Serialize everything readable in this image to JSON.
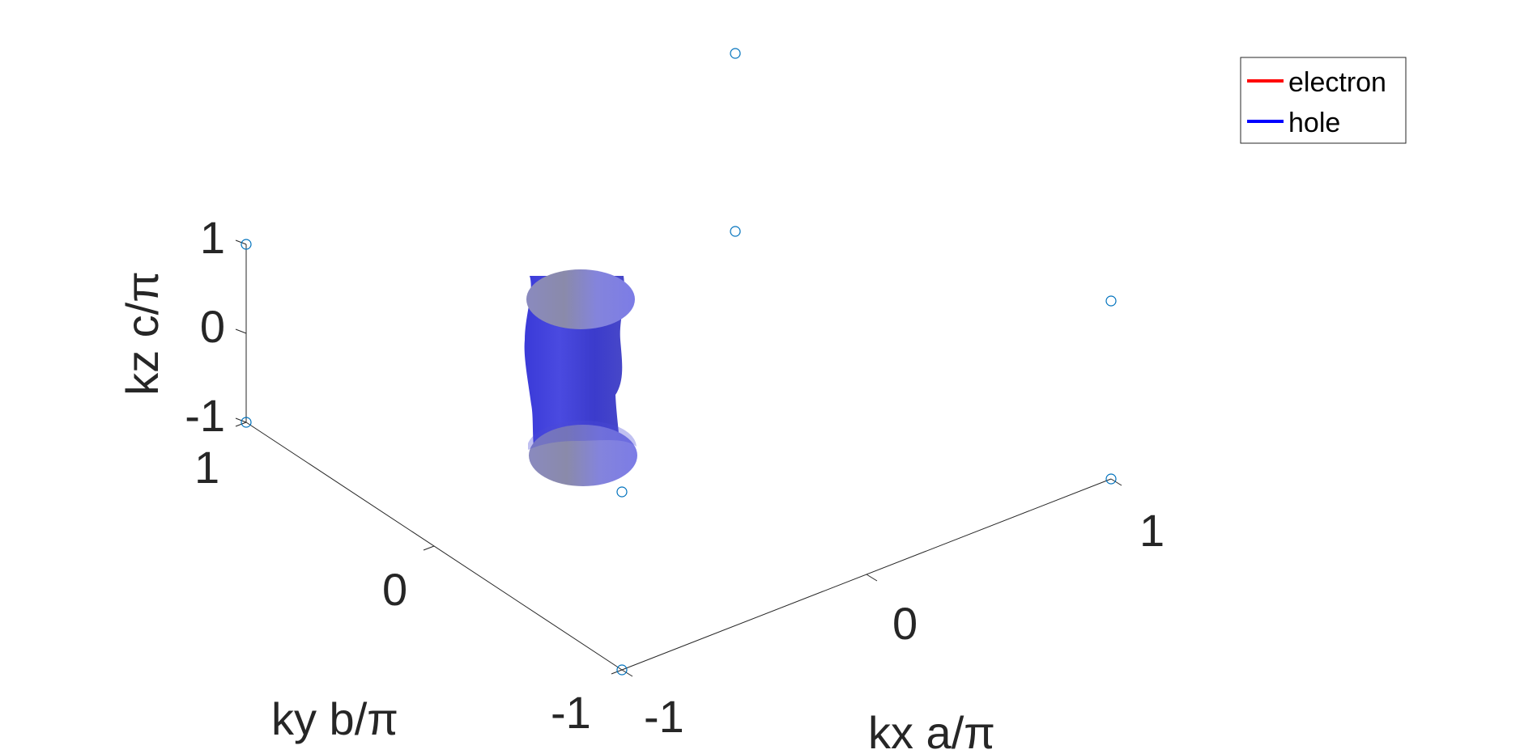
{
  "chart_data": {
    "type": "surface3d",
    "axes": {
      "x": {
        "label": "kx a/π",
        "ticks": [
          -1,
          0,
          1
        ],
        "tick_labels": [
          "-1",
          "0",
          "1"
        ],
        "range": [
          -1,
          1
        ]
      },
      "y": {
        "label": "ky b/π",
        "ticks": [
          -1,
          0,
          1
        ],
        "tick_labels": [
          "-1",
          "0",
          "1"
        ],
        "range": [
          -1,
          1
        ]
      },
      "z": {
        "label": "kz c/π",
        "ticks": [
          -1,
          0,
          1
        ],
        "tick_labels": [
          "-1",
          "0",
          "1"
        ],
        "range": [
          -1,
          1
        ]
      }
    },
    "grid": false,
    "legend": {
      "placement": "top-right",
      "entries": [
        {
          "label": "electron",
          "color": "#ff0000"
        },
        {
          "label": "hole",
          "color": "#0000ff"
        }
      ]
    },
    "surface": {
      "series": "hole",
      "shape": "cylinder along kz",
      "center": [
        0,
        0
      ],
      "z_range": [
        -1,
        1
      ],
      "color": "#3a3ae0"
    },
    "corner_markers": {
      "color": "#0072bd",
      "points": [
        {
          "x": -1,
          "y": -1,
          "z": -1
        },
        {
          "x": 1,
          "y": -1,
          "z": -1
        },
        {
          "x": -1,
          "y": 1,
          "z": -1
        },
        {
          "x": 1,
          "y": 1,
          "z": -1
        },
        {
          "x": -1,
          "y": -1,
          "z": 1
        },
        {
          "x": 1,
          "y": -1,
          "z": 1
        },
        {
          "x": -1,
          "y": 1,
          "z": 1
        },
        {
          "x": 1,
          "y": 1,
          "z": 1
        }
      ]
    }
  }
}
